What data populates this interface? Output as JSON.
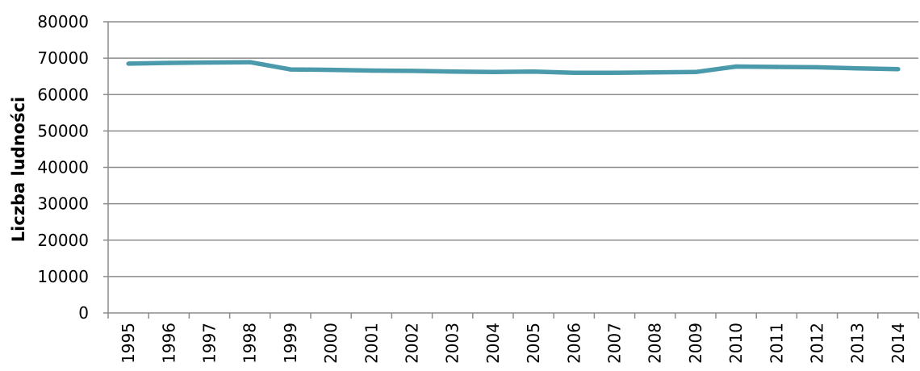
{
  "chart_data": {
    "type": "line",
    "title": "",
    "xlabel": "",
    "ylabel": "Liczba ludności",
    "ylim": [
      0,
      80000
    ],
    "yticks": [
      "0",
      "10000",
      "20000",
      "30000",
      "40000",
      "50000",
      "60000",
      "70000",
      "80000"
    ],
    "grid": "horizontal",
    "legend": "none",
    "categories": [
      "1995",
      "1996",
      "1997",
      "1998",
      "1999",
      "2000",
      "2001",
      "2002",
      "2003",
      "2004",
      "2005",
      "2006",
      "2007",
      "2008",
      "2009",
      "2010",
      "2011",
      "2012",
      "2013",
      "2014"
    ],
    "series": [
      {
        "color": "#4a9aab",
        "values": [
          68500,
          68700,
          68800,
          68900,
          66900,
          66800,
          66600,
          66500,
          66300,
          66200,
          66300,
          66000,
          66000,
          66100,
          66200,
          67700,
          67600,
          67500,
          67200,
          67000
        ]
      }
    ]
  }
}
